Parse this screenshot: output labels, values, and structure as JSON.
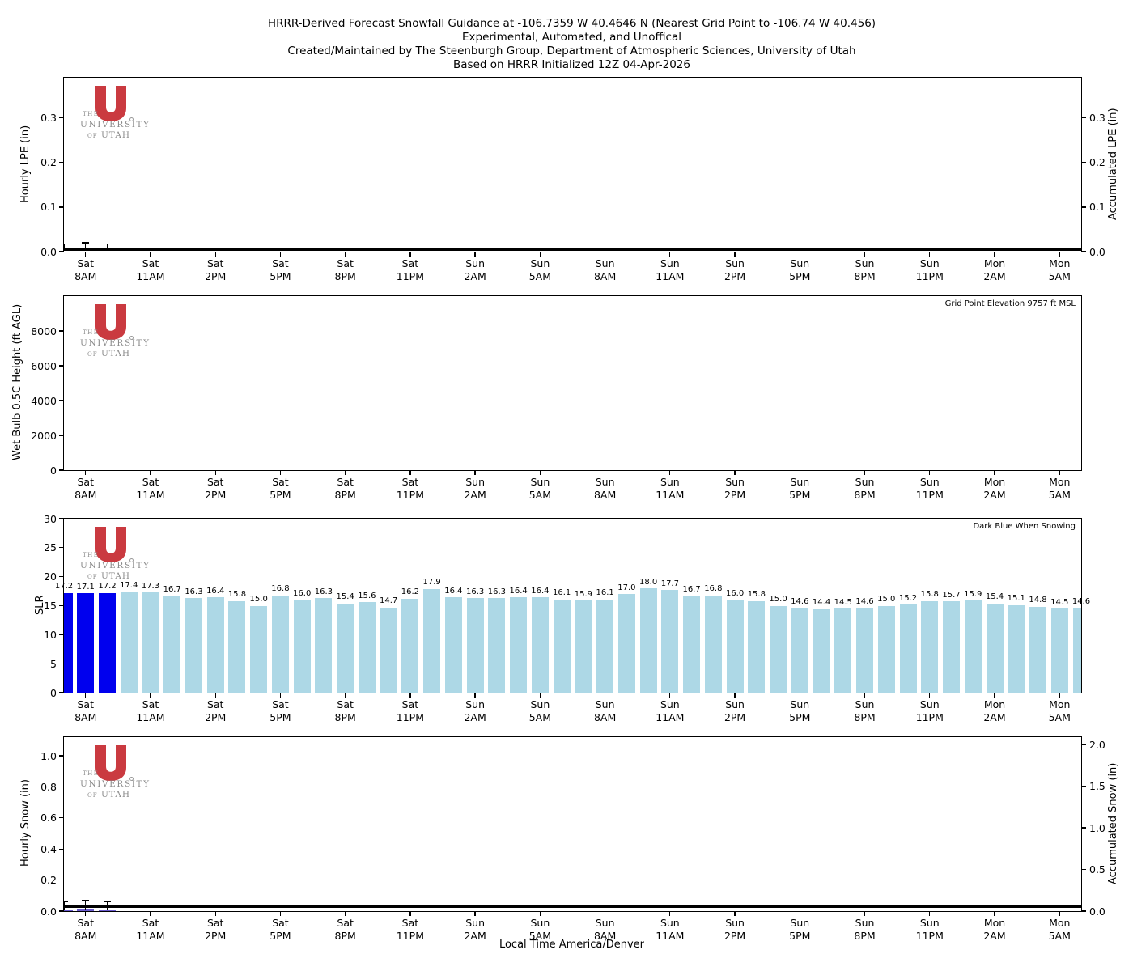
{
  "title": {
    "line1": "HRRR-Derived Forecast Snowfall Guidance at -106.7359 W 40.4646 N (Nearest Grid Point to -106.74 W 40.456)",
    "line2": "Experimental, Automated, and Unoffical",
    "line3": "Created/Maintained by The Steenburgh Group, Department of Atmospheric Sciences, University of Utah",
    "line4": "Based on HRRR Initialized 12Z 04-Apr-2026"
  },
  "logo": {
    "the": "THE",
    "university": "UNIVERSITY",
    "of": "OF",
    "utah": "UTAH"
  },
  "colors": {
    "snowing_bar": "#0000EE",
    "normal_bar": "#ADD8E6",
    "snow_bar": "#6A5ACD",
    "accumulated_line": "#000000",
    "logo_red": "#CA3A40",
    "logo_gray": "#8A8A8A"
  },
  "x_axis": {
    "label": "Local Time America/Denver",
    "n_slots": 48,
    "tick_slots": [
      1,
      4,
      7,
      10,
      13,
      16,
      19,
      22,
      25,
      28,
      31,
      34,
      37,
      40,
      43,
      46
    ],
    "tick_labels": [
      {
        "day": "Sat",
        "time": "8AM"
      },
      {
        "day": "Sat",
        "time": "11AM"
      },
      {
        "day": "Sat",
        "time": "2PM"
      },
      {
        "day": "Sat",
        "time": "5PM"
      },
      {
        "day": "Sat",
        "time": "8PM"
      },
      {
        "day": "Sat",
        "time": "11PM"
      },
      {
        "day": "Sun",
        "time": "2AM"
      },
      {
        "day": "Sun",
        "time": "5AM"
      },
      {
        "day": "Sun",
        "time": "8AM"
      },
      {
        "day": "Sun",
        "time": "11AM"
      },
      {
        "day": "Sun",
        "time": "2PM"
      },
      {
        "day": "Sun",
        "time": "5PM"
      },
      {
        "day": "Sun",
        "time": "8PM"
      },
      {
        "day": "Sun",
        "time": "11PM"
      },
      {
        "day": "Mon",
        "time": "2AM"
      },
      {
        "day": "Mon",
        "time": "5AM"
      }
    ]
  },
  "chart_data": [
    {
      "type": "bar",
      "panel": "hourly-lpe",
      "ylabel": "Hourly LPE (in)",
      "ylabel_right": "Accumulated LPE (in)",
      "yticks": [
        0.0,
        0.1,
        0.2,
        0.3
      ],
      "ytick_labels": [
        "0.0",
        "0.1",
        "0.2",
        "0.3"
      ],
      "ylim": [
        0,
        0.39
      ],
      "right_yticks": [
        0.0,
        0.1,
        0.2,
        0.3
      ],
      "right_ytick_labels": [
        "0.0",
        "0.1",
        "0.2",
        "0.3"
      ],
      "right_ylim": [
        0,
        0.39
      ],
      "errorbar_slots": [
        0,
        1,
        2
      ],
      "errorbar_tops": [
        0.019,
        0.021,
        0.019
      ],
      "accumulated_line_value": 0.005
    },
    {
      "type": "line",
      "panel": "wet-bulb-0.5c-height",
      "ylabel": "Wet Bulb 0.5C Height (ft AGL)",
      "yticks": [
        0,
        2000,
        4000,
        6000,
        8000
      ],
      "ytick_labels": [
        "0",
        "2000",
        "4000",
        "6000",
        "8000"
      ],
      "ylim": [
        0,
        10000
      ],
      "annotation": "Grid Point Elevation 9757 ft MSL",
      "values": []
    },
    {
      "type": "bar",
      "panel": "slr",
      "ylabel": "SLR",
      "yticks": [
        0,
        5,
        10,
        15,
        20,
        25,
        30
      ],
      "ytick_labels": [
        "0",
        "5",
        "10",
        "15",
        "20",
        "25",
        "30"
      ],
      "ylim": [
        0,
        30
      ],
      "annotation": "Dark Blue When Snowing",
      "snowing_slots": [
        0,
        1,
        2
      ],
      "values": [
        "17.2",
        "17.1",
        "17.2",
        "17.4",
        "17.3",
        "16.7",
        "16.3",
        "16.4",
        "15.8",
        "15.0",
        "16.8",
        "16.0",
        "16.3",
        "15.4",
        "15.6",
        "14.7",
        "16.2",
        "17.9",
        "16.4",
        "16.3",
        "16.3",
        "16.4",
        "16.4",
        "16.1",
        "15.9",
        "16.1",
        "17.0",
        "18.0",
        "17.7",
        "16.7",
        "16.8",
        "16.0",
        "15.8",
        "15.0",
        "14.6",
        "14.4",
        "14.5",
        "14.6",
        "15.0",
        "15.2",
        "15.8",
        "15.7",
        "15.9",
        "15.4",
        "15.1",
        "14.8",
        "14.5",
        "14.6"
      ]
    },
    {
      "type": "bar",
      "panel": "hourly-snow",
      "ylabel": "Hourly Snow (in)",
      "ylabel_right": "Accumulated Snow (in)",
      "yticks": [
        0.0,
        0.2,
        0.4,
        0.6,
        0.8,
        1.0
      ],
      "ytick_labels": [
        "0.0",
        "0.2",
        "0.4",
        "0.6",
        "0.8",
        "1.0"
      ],
      "ylim": [
        0,
        1.12
      ],
      "right_yticks": [
        0.0,
        0.5,
        1.0,
        1.5,
        2.0
      ],
      "right_ytick_labels": [
        "0.0",
        "0.5",
        "1.0",
        "1.5",
        "2.0"
      ],
      "right_ylim": [
        0,
        2.09
      ],
      "value_slots": [
        0,
        1,
        2
      ],
      "values": [
        0.012,
        0.016,
        0.01
      ],
      "errorbar_slots": [
        0,
        1,
        2
      ],
      "errorbar_tops": [
        0.062,
        0.072,
        0.062
      ],
      "accumulated_line_value": 0.028
    }
  ]
}
